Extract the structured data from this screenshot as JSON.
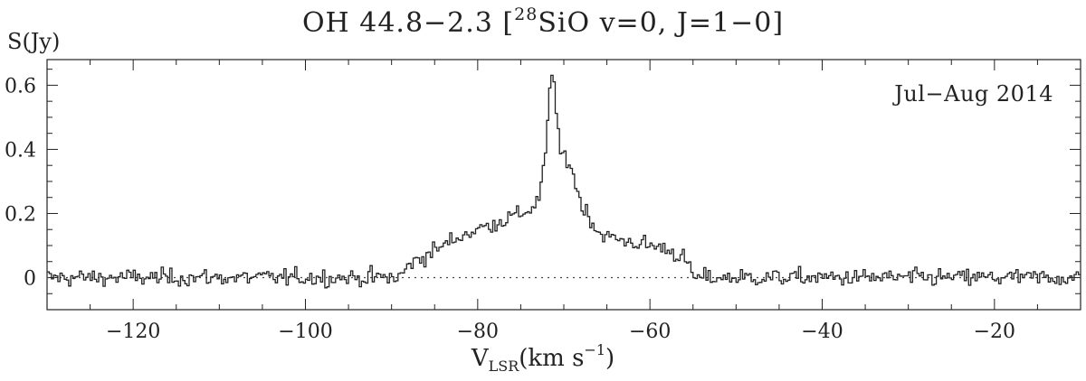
{
  "chart_data": {
    "type": "line",
    "title": {
      "main": "OH 44.8−2.3 [",
      "isotope": "28",
      "rest": "SiO v=0, J=1−0]"
    },
    "xlabel": {
      "main": "V",
      "sub": "LSR",
      "unit": "(km s",
      "exp": "−1",
      "close": ")"
    },
    "ylabel": "S(Jy)",
    "annotation": "Jul−Aug 2014",
    "xlim": [
      -130,
      -10
    ],
    "ylim": [
      -0.1,
      0.68
    ],
    "xticks": [
      -120,
      -100,
      -80,
      -60,
      -40,
      -20
    ],
    "xtick_labels": [
      "−120",
      "−100",
      "−80",
      "−60",
      "−40",
      "−20"
    ],
    "yticks": [
      0,
      0.2,
      0.4,
      0.6
    ],
    "ytick_labels": [
      "0",
      "0.2",
      "0.4",
      "0.6"
    ],
    "baseline": 0,
    "step": 0.25,
    "noise_rms": 0.018,
    "profile_x": [
      -130,
      -89,
      -88,
      -86,
      -84,
      -82,
      -80,
      -78,
      -76,
      -74,
      -73,
      -72.5,
      -72,
      -71.7,
      -71.5,
      -71.3,
      -71,
      -70.7,
      -70.4,
      -70,
      -69.5,
      -69,
      -68.5,
      -68,
      -67,
      -66,
      -64,
      -62,
      -60,
      -58,
      -56,
      -55.4,
      -55,
      -10
    ],
    "profile_y": [
      0,
      0,
      0.04,
      0.07,
      0.1,
      0.13,
      0.15,
      0.17,
      0.19,
      0.21,
      0.24,
      0.3,
      0.42,
      0.55,
      0.63,
      0.65,
      0.57,
      0.44,
      0.39,
      0.38,
      0.37,
      0.33,
      0.28,
      0.23,
      0.19,
      0.14,
      0.12,
      0.11,
      0.1,
      0.09,
      0.06,
      0.03,
      0,
      0
    ]
  }
}
